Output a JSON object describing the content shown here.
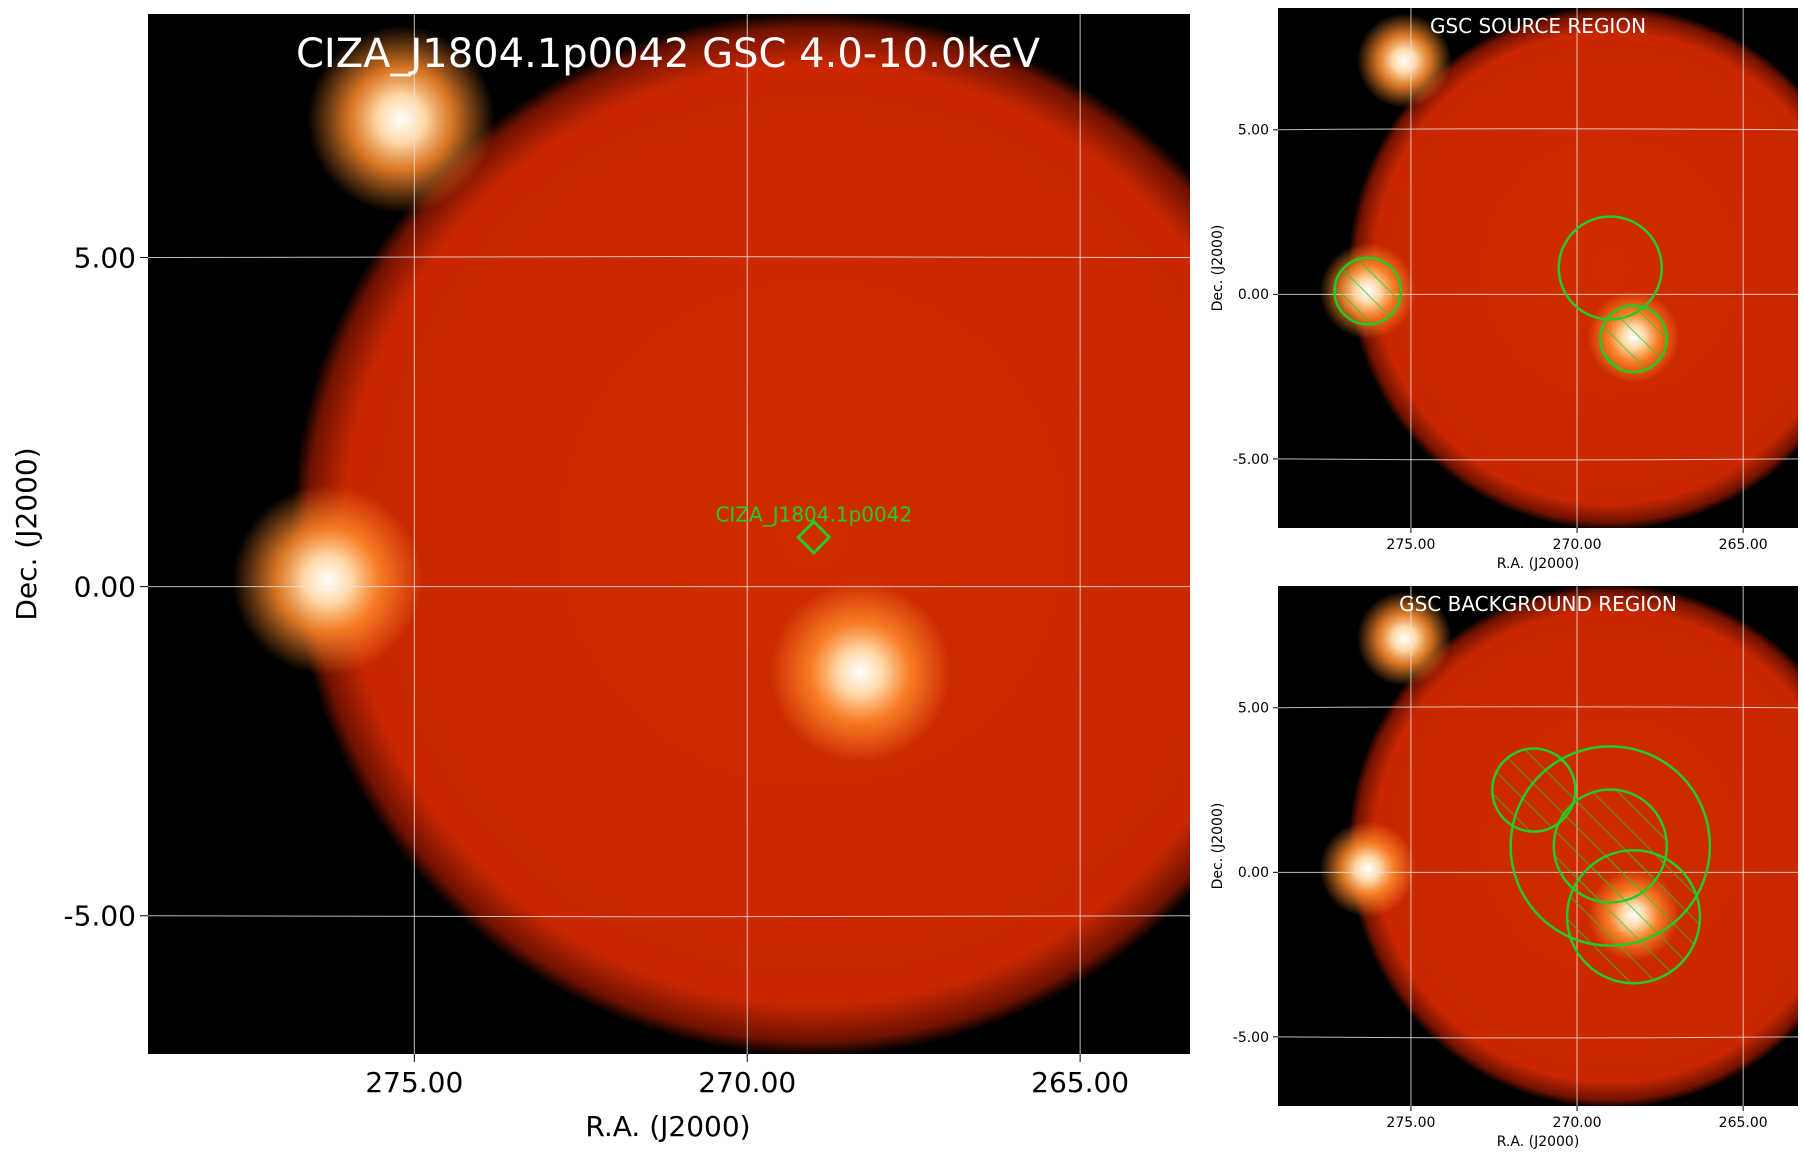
{
  "main_panel": {
    "title": "CIZA_J1804.1p0042 GSC 4.0-10.0keV",
    "xlabel": "R.A. (J2000)",
    "ylabel": "Dec. (J2000)",
    "xticks": [
      {
        "value": 275,
        "label": "275.00"
      },
      {
        "value": 270,
        "label": "270.00"
      },
      {
        "value": 265,
        "label": "265.00"
      }
    ],
    "yticks": [
      {
        "value": 5,
        "label": "5.00"
      },
      {
        "value": 0,
        "label": "0.00"
      },
      {
        "value": -5,
        "label": "-5.00"
      }
    ],
    "target": {
      "label": "CIZA_J1804.1p0042",
      "ra": 269.0,
      "dec": 0.75
    }
  },
  "source_panel": {
    "title": "GSC SOURCE REGION",
    "xlabel": "R.A. (J2000)",
    "ylabel": "Dec. (J2000)",
    "xticks": [
      {
        "value": 275,
        "label": "275.00"
      },
      {
        "value": 270,
        "label": "270.00"
      },
      {
        "value": 265,
        "label": "265.00"
      }
    ],
    "yticks": [
      {
        "value": 5,
        "label": "5.00"
      },
      {
        "value": 0,
        "label": "0.00"
      },
      {
        "value": -5,
        "label": "-5.00"
      }
    ]
  },
  "background_panel": {
    "title": "GSC BACKGROUND REGION",
    "xlabel": "R.A. (J2000)",
    "ylabel": "Dec. (J2000)",
    "xticks": [
      {
        "value": 275,
        "label": "275.00"
      },
      {
        "value": 270,
        "label": "270.00"
      },
      {
        "value": 265,
        "label": "265.00"
      }
    ],
    "yticks": [
      {
        "value": 5,
        "label": "5.00"
      },
      {
        "value": 0,
        "label": "0.00"
      },
      {
        "value": -5,
        "label": "-5.00"
      }
    ]
  },
  "sky": {
    "field_center": {
      "ra": 269.0,
      "dec": 0.8
    },
    "sources": [
      {
        "ra": 275.2,
        "dec": 7.1,
        "strength": 0.95
      },
      {
        "ra": 276.3,
        "dec": 0.1,
        "strength": 1.0
      },
      {
        "ra": 268.3,
        "dec": -1.3,
        "strength": 0.85
      }
    ],
    "colors": {
      "background": "#cc2a00",
      "edge": "#000000",
      "source_core": "#ffffff",
      "source_halo": "#ff8a2a",
      "grid": "#e8e8e8",
      "region": "#22cc22",
      "title": "#ffffff"
    }
  },
  "source_regions": [
    {
      "ra": 269.0,
      "dec": 0.8,
      "r": 1.55,
      "hatched": false
    },
    {
      "ra": 276.3,
      "dec": 0.1,
      "r": 1.0,
      "hatched": true
    },
    {
      "ra": 268.3,
      "dec": -1.35,
      "r": 1.0,
      "hatched": true
    }
  ],
  "background_regions": [
    {
      "ra": 269.0,
      "dec": 0.8,
      "r": 3.0,
      "hatched": false
    },
    {
      "ra": 271.3,
      "dec": 2.5,
      "r": 1.25,
      "hatched": true
    },
    {
      "ra": 269.0,
      "dec": 0.8,
      "r": 1.7,
      "hatched": true
    },
    {
      "ra": 268.3,
      "dec": -1.35,
      "r": 2.0,
      "hatched": true
    }
  ]
}
